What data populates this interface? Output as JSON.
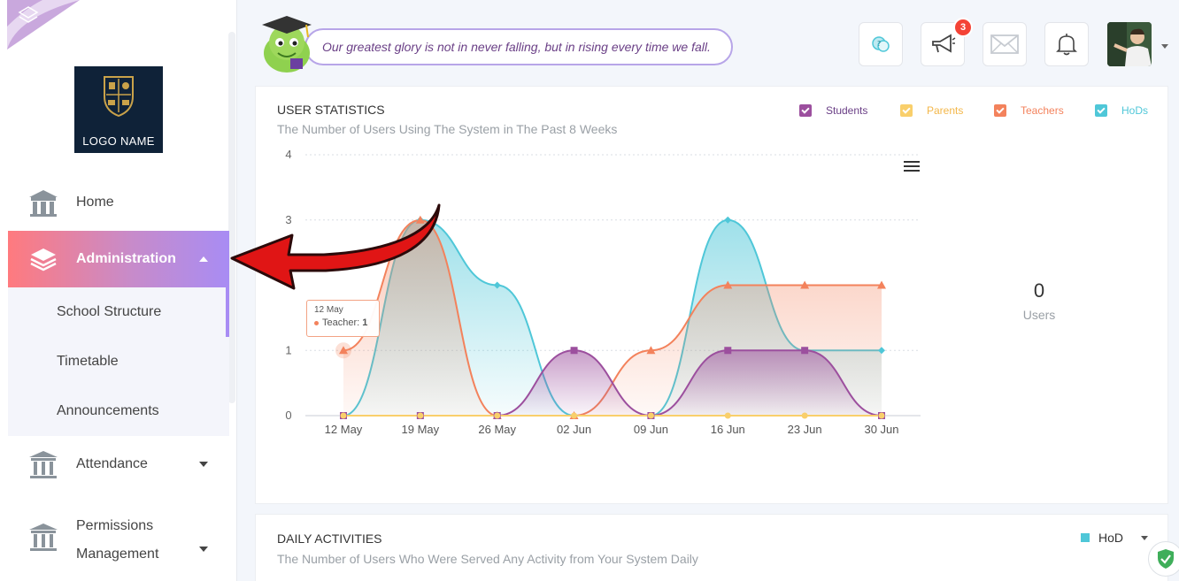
{
  "sidebar": {
    "logo_name": "LOGO NAME",
    "items": [
      {
        "label": "Home",
        "icon": "school-building-icon"
      },
      {
        "label": "Administration",
        "icon": "layers-icon"
      },
      {
        "label": "Attendance",
        "icon": "columns-icon"
      },
      {
        "label": "Permissions Management",
        "icon": "columns-icon"
      }
    ],
    "submenu": [
      "School Structure",
      "Timetable",
      "Announcements"
    ]
  },
  "header": {
    "quote": "Our greatest glory is not in never falling, but in rising every time we fall.",
    "announcement_badge": "3"
  },
  "user_stats": {
    "title": "USER STATISTICS",
    "subtitle": "The Number of Users Using The System in The Past 8 Weeks",
    "legend": [
      {
        "name": "Students",
        "color": "#9c4f9e"
      },
      {
        "name": "Parents",
        "color": "#f9cf6b"
      },
      {
        "name": "Teachers",
        "color": "#f3825c"
      },
      {
        "name": "HoDs",
        "color": "#4fc7d8"
      }
    ],
    "users_count": "0",
    "users_label": "Users",
    "tooltip": {
      "date": "12 May",
      "series": "Teacher:",
      "value": "1"
    }
  },
  "chart_data": {
    "type": "area",
    "categories": [
      "12 May",
      "19 May",
      "26 May",
      "02 Jun",
      "09 Jun",
      "16 Jun",
      "23 Jun",
      "30 Jun"
    ],
    "y_ticks": [
      "0",
      "1",
      "3",
      "4"
    ],
    "ylim": [
      0,
      4
    ],
    "series": [
      {
        "name": "Students",
        "values": [
          0,
          0,
          0,
          1,
          0,
          1,
          1,
          0
        ]
      },
      {
        "name": "Parents",
        "values": [
          0,
          0,
          0,
          0,
          0,
          0,
          0,
          0
        ]
      },
      {
        "name": "Teachers",
        "values": [
          1,
          3,
          0,
          0,
          1,
          2,
          2,
          2
        ]
      },
      {
        "name": "HoDs",
        "values": [
          0,
          3,
          2,
          0,
          0,
          3,
          1,
          1
        ]
      }
    ],
    "grid": true
  },
  "daily": {
    "title": "DAILY ACTIVITIES",
    "subtitle": "The Number of Users Who Were Served Any Activity from Your System Daily",
    "legend": "HoD"
  }
}
